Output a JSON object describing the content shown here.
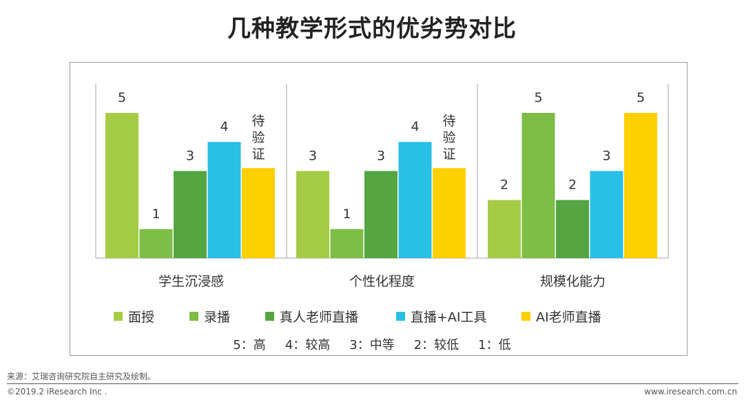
{
  "title": "几种教学形式的优劣势对比",
  "chart_data": {
    "type": "bar",
    "categories": [
      "学生沉浸感",
      "个性化程度",
      "规模化能力"
    ],
    "ylim": [
      0,
      5
    ],
    "series": [
      {
        "name": "面授",
        "color": "#a6cc45",
        "values": [
          5,
          3,
          2
        ],
        "labels": [
          "5",
          "3",
          "2"
        ]
      },
      {
        "name": "录播",
        "color": "#7ebd46",
        "values": [
          1,
          1,
          5
        ],
        "labels": [
          "1",
          "1",
          "5"
        ]
      },
      {
        "name": "真人老师直播",
        "color": "#55a542",
        "values": [
          3,
          3,
          2
        ],
        "labels": [
          "3",
          "3",
          "2"
        ]
      },
      {
        "name": "直播+AI工具",
        "color": "#29c0e6",
        "values": [
          4,
          4,
          3
        ],
        "labels": [
          "4",
          "4",
          "3"
        ]
      },
      {
        "name": "AI老师直播",
        "color": "#fdd000",
        "values": [
          3.1,
          3.1,
          5
        ],
        "labels": [
          "待\n验\n证",
          "待\n验\n证",
          "5"
        ]
      }
    ]
  },
  "scale_note": [
    "5：高",
    "4：较高",
    "3：中等",
    "2：较低",
    "1：低"
  ],
  "footer": {
    "source": "来源：艾瑞咨询研究院自主研究及绘制。",
    "copyright": "©2019.2 iResearch Inc .",
    "website": "www.iresearch.com.cn"
  }
}
